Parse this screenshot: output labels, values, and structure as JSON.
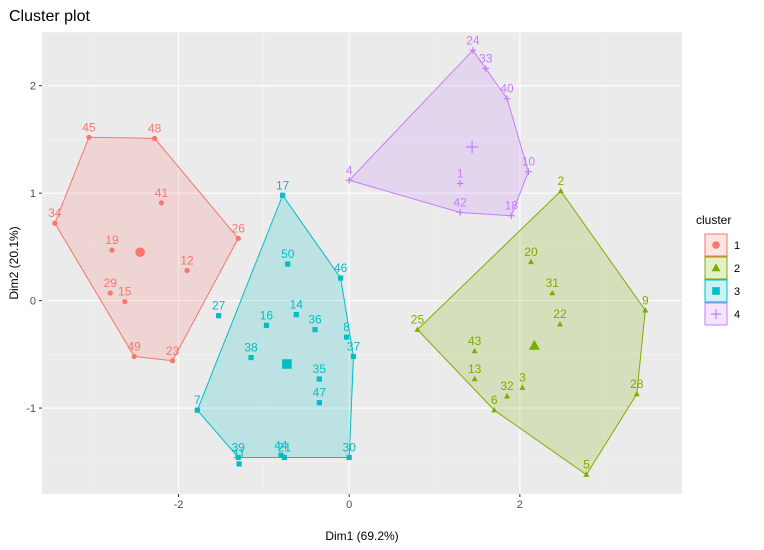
{
  "chart_data": {
    "type": "scatter",
    "title": "Cluster plot",
    "xlabel": "Dim1 (69.2%)",
    "ylabel": "Dim2 (20.1%)",
    "xlim": [
      -3.6,
      3.9
    ],
    "ylim": [
      -1.8,
      2.5
    ],
    "xticks": [
      -2,
      0,
      2
    ],
    "yticks": [
      -1,
      0,
      1,
      2
    ],
    "grid": true,
    "legend": {
      "title": "cluster",
      "position": "right"
    },
    "clusters": [
      {
        "name": "1",
        "color": "#F8766D",
        "shape": "circle",
        "center": [
          -2.45,
          0.45
        ],
        "hull": [
          "45",
          "48",
          "26",
          "23",
          "49",
          "34"
        ],
        "points": [
          {
            "label": "45",
            "x": -3.05,
            "y": 1.52
          },
          {
            "label": "48",
            "x": -2.28,
            "y": 1.51
          },
          {
            "label": "41",
            "x": -2.2,
            "y": 0.91
          },
          {
            "label": "34",
            "x": -3.45,
            "y": 0.72
          },
          {
            "label": "26",
            "x": -1.3,
            "y": 0.58
          },
          {
            "label": "19",
            "x": -2.78,
            "y": 0.47
          },
          {
            "label": "12",
            "x": -1.9,
            "y": 0.28
          },
          {
            "label": "29",
            "x": -2.8,
            "y": 0.07
          },
          {
            "label": "15",
            "x": -2.63,
            "y": -0.01
          },
          {
            "label": "49",
            "x": -2.52,
            "y": -0.52
          },
          {
            "label": "23",
            "x": -2.07,
            "y": -0.56
          }
        ]
      },
      {
        "name": "2",
        "color": "#7CAE00",
        "shape": "triangle",
        "center": [
          2.17,
          -0.42
        ],
        "hull": [
          "2",
          "9",
          "28",
          "5",
          "6",
          "25"
        ],
        "points": [
          {
            "label": "2",
            "x": 2.48,
            "y": 1.02
          },
          {
            "label": "20",
            "x": 2.13,
            "y": 0.36
          },
          {
            "label": "31",
            "x": 2.38,
            "y": 0.07
          },
          {
            "label": "9",
            "x": 3.47,
            "y": -0.09
          },
          {
            "label": "22",
            "x": 2.47,
            "y": -0.22
          },
          {
            "label": "25",
            "x": 0.8,
            "y": -0.27
          },
          {
            "label": "43",
            "x": 1.47,
            "y": -0.47
          },
          {
            "label": "13",
            "x": 1.47,
            "y": -0.73
          },
          {
            "label": "32",
            "x": 1.85,
            "y": -0.89
          },
          {
            "label": "3",
            "x": 2.03,
            "y": -0.81
          },
          {
            "label": "6",
            "x": 1.7,
            "y": -1.02
          },
          {
            "label": "28",
            "x": 3.37,
            "y": -0.87
          },
          {
            "label": "5",
            "x": 2.78,
            "y": -1.62
          }
        ]
      },
      {
        "name": "3",
        "color": "#00BFC4",
        "shape": "square",
        "center": [
          -0.73,
          -0.59
        ],
        "hull": [
          "17",
          "46",
          "37",
          "30",
          "39",
          "7"
        ],
        "points": [
          {
            "label": "17",
            "x": -0.78,
            "y": 0.98
          },
          {
            "label": "50",
            "x": -0.72,
            "y": 0.34
          },
          {
            "label": "46",
            "x": -0.1,
            "y": 0.21
          },
          {
            "label": "14",
            "x": -0.62,
            "y": -0.13
          },
          {
            "label": "27",
            "x": -1.53,
            "y": -0.14
          },
          {
            "label": "16",
            "x": -0.97,
            "y": -0.23
          },
          {
            "label": "36",
            "x": -0.4,
            "y": -0.27
          },
          {
            "label": "8",
            "x": -0.03,
            "y": -0.34
          },
          {
            "label": "37",
            "x": 0.05,
            "y": -0.52
          },
          {
            "label": "38",
            "x": -1.15,
            "y": -0.53
          },
          {
            "label": "35",
            "x": -0.35,
            "y": -0.73
          },
          {
            "label": "47",
            "x": -0.35,
            "y": -0.95
          },
          {
            "label": "7",
            "x": -1.78,
            "y": -1.02
          },
          {
            "label": "30",
            "x": 0,
            "y": -1.46
          },
          {
            "label": "44",
            "x": -0.8,
            "y": -1.44
          },
          {
            "label": "21",
            "x": -0.76,
            "y": -1.46
          },
          {
            "label": "39",
            "x": -1.3,
            "y": -1.46
          },
          {
            "label": "11",
            "x": -1.29,
            "y": -1.52
          }
        ]
      },
      {
        "name": "4",
        "color": "#C77CFF",
        "shape": "plus",
        "center": [
          1.44,
          1.43
        ],
        "hull": [
          "24",
          "33",
          "40",
          "10",
          "18",
          "42",
          "4"
        ],
        "points": [
          {
            "label": "24",
            "x": 1.45,
            "y": 2.33
          },
          {
            "label": "33",
            "x": 1.6,
            "y": 2.16
          },
          {
            "label": "40",
            "x": 1.85,
            "y": 1.88
          },
          {
            "label": "10",
            "x": 2.1,
            "y": 1.2
          },
          {
            "label": "4",
            "x": 0,
            "y": 1.12
          },
          {
            "label": "1",
            "x": 1.3,
            "y": 1.09
          },
          {
            "label": "42",
            "x": 1.3,
            "y": 0.82
          },
          {
            "label": "18",
            "x": 1.9,
            "y": 0.79
          }
        ]
      }
    ]
  }
}
